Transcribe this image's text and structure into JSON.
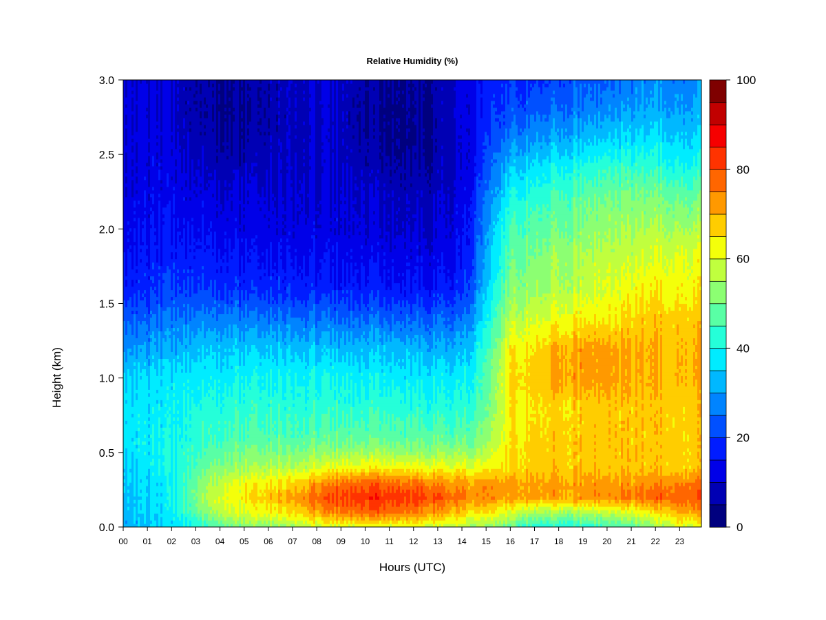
{
  "chart_data": {
    "type": "heatmap",
    "title": "Relative Humidity (%)",
    "xlabel": "Hours (UTC)",
    "ylabel": "Height (km)",
    "x_ticks": [
      "00",
      "01",
      "02",
      "03",
      "04",
      "05",
      "06",
      "07",
      "08",
      "09",
      "10",
      "11",
      "12",
      "13",
      "14",
      "15",
      "16",
      "17",
      "18",
      "19",
      "20",
      "21",
      "22",
      "23"
    ],
    "y_ticks": [
      "0.0",
      "0.5",
      "1.0",
      "1.5",
      "2.0",
      "2.5",
      "3.0"
    ],
    "xlim": [
      0,
      23.9
    ],
    "ylim": [
      0,
      3.0
    ],
    "x_hours": [
      0,
      1,
      2,
      3,
      4,
      5,
      6,
      7,
      8,
      9,
      10,
      11,
      12,
      13,
      14,
      15,
      16,
      17,
      18,
      19,
      20,
      21,
      22,
      23
    ],
    "y_km": [
      0.0,
      0.1,
      0.2,
      0.3,
      0.4,
      0.5,
      0.6,
      0.8,
      1.0,
      1.2,
      1.4,
      1.6,
      1.8,
      2.0,
      2.2,
      2.4,
      2.6,
      2.8,
      3.0
    ],
    "z_rh": [
      [
        32,
        33,
        36,
        40,
        47,
        51,
        52,
        55,
        58,
        60,
        60,
        60,
        60,
        58,
        56,
        53,
        48,
        42,
        40,
        42,
        44,
        46,
        54,
        60
      ],
      [
        34,
        35,
        38,
        48,
        57,
        60,
        63,
        66,
        72,
        76,
        78,
        77,
        76,
        72,
        68,
        64,
        60,
        56,
        55,
        56,
        58,
        60,
        65,
        72
      ],
      [
        34,
        35,
        38,
        51,
        61,
        64,
        68,
        72,
        78,
        82,
        84,
        83,
        83,
        80,
        76,
        74,
        72,
        72,
        72,
        73,
        74,
        76,
        78,
        80
      ],
      [
        35,
        36,
        38,
        50,
        58,
        62,
        64,
        66,
        72,
        76,
        78,
        77,
        76,
        74,
        72,
        72,
        72,
        72,
        72,
        72,
        72,
        72,
        74,
        76
      ],
      [
        36,
        37,
        39,
        47,
        52,
        54,
        56,
        57,
        60,
        62,
        64,
        63,
        63,
        62,
        62,
        62,
        66,
        68,
        68,
        68,
        68,
        68,
        68,
        68
      ],
      [
        38,
        38,
        40,
        45,
        48,
        50,
        51,
        52,
        53,
        54,
        55,
        54,
        54,
        54,
        54,
        56,
        66,
        68,
        68,
        68,
        68,
        68,
        68,
        68
      ],
      [
        38,
        38,
        39,
        43,
        45,
        46,
        47,
        47,
        48,
        48,
        48,
        48,
        48,
        48,
        48,
        52,
        64,
        67,
        68,
        68,
        68,
        68,
        68,
        68
      ],
      [
        38,
        37,
        38,
        41,
        42,
        43,
        43,
        43,
        43,
        43,
        43,
        43,
        43,
        42,
        42,
        48,
        64,
        66,
        66,
        67,
        68,
        68,
        68,
        68
      ],
      [
        36,
        36,
        37,
        38,
        38,
        39,
        40,
        40,
        40,
        40,
        39,
        38,
        38,
        38,
        38,
        46,
        66,
        68,
        72,
        72,
        72,
        70,
        70,
        70
      ],
      [
        30,
        30,
        31,
        34,
        34,
        34,
        34,
        34,
        34,
        33,
        33,
        33,
        33,
        32,
        32,
        42,
        64,
        66,
        70,
        72,
        72,
        70,
        70,
        70
      ],
      [
        24,
        24,
        26,
        27,
        27,
        26,
        26,
        26,
        26,
        25,
        25,
        24,
        24,
        24,
        25,
        38,
        56,
        60,
        62,
        64,
        64,
        66,
        68,
        68
      ],
      [
        18,
        18,
        20,
        20,
        19,
        18,
        18,
        18,
        18,
        17,
        17,
        16,
        16,
        16,
        18,
        33,
        52,
        54,
        56,
        58,
        60,
        62,
        64,
        64
      ],
      [
        16,
        16,
        17,
        17,
        16,
        15,
        15,
        15,
        15,
        14,
        14,
        13,
        13,
        13,
        15,
        30,
        48,
        52,
        54,
        56,
        58,
        58,
        60,
        62
      ],
      [
        14,
        14,
        15,
        14,
        13,
        12,
        12,
        12,
        12,
        12,
        11,
        10,
        10,
        10,
        13,
        28,
        46,
        48,
        50,
        52,
        54,
        55,
        56,
        56
      ],
      [
        13,
        13,
        13,
        12,
        11,
        11,
        11,
        11,
        11,
        11,
        10,
        9,
        9,
        9,
        12,
        25,
        40,
        44,
        46,
        48,
        50,
        51,
        51,
        50
      ],
      [
        12,
        12,
        12,
        10,
        8,
        8,
        9,
        10,
        10,
        10,
        8,
        6,
        6,
        7,
        10,
        21,
        34,
        38,
        40,
        42,
        44,
        44,
        44,
        42
      ],
      [
        12,
        12,
        11,
        7,
        5,
        5,
        7,
        9,
        10,
        9,
        6,
        4,
        4,
        6,
        10,
        19,
        27,
        30,
        32,
        33,
        35,
        36,
        37,
        36
      ],
      [
        12,
        11,
        10,
        6,
        4,
        4,
        6,
        9,
        10,
        9,
        5,
        4,
        4,
        6,
        11,
        17,
        22,
        24,
        25,
        27,
        28,
        30,
        31,
        31
      ],
      [
        12,
        11,
        10,
        6,
        5,
        5,
        7,
        10,
        11,
        10,
        6,
        5,
        5,
        7,
        12,
        16,
        19,
        20,
        21,
        23,
        24,
        26,
        28,
        28
      ]
    ],
    "colorbar": {
      "ticks": [
        "0",
        "20",
        "40",
        "60",
        "80",
        "100"
      ],
      "min": 0,
      "max": 100,
      "levels": 20,
      "colors": [
        "#00007f",
        "#0000b4",
        "#0000e8",
        "#001cff",
        "#0050ff",
        "#0084ff",
        "#00b8ff",
        "#00ecff",
        "#25ffd9",
        "#59ffa5",
        "#8cff72",
        "#c0ff3e",
        "#f4ff0a",
        "#ffcd00",
        "#ff9900",
        "#ff6600",
        "#ff3300",
        "#f60000",
        "#c10000",
        "#7f0000"
      ]
    }
  }
}
